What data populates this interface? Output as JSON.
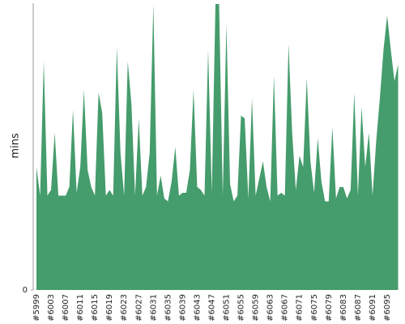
{
  "chart_data": {
    "type": "area",
    "y_label": "mins",
    "color": "#459c6c",
    "categories": [
      "#5999",
      null,
      null,
      null,
      "#6003",
      null,
      null,
      null,
      "#6007",
      null,
      null,
      null,
      "#6011",
      null,
      null,
      null,
      "#6015",
      null,
      null,
      null,
      "#6019",
      null,
      null,
      null,
      "#6023",
      null,
      null,
      null,
      "#6027",
      null,
      null,
      null,
      "#6031",
      null,
      null,
      null,
      "#6035",
      null,
      null,
      null,
      "#6039",
      null,
      null,
      null,
      "#6043",
      null,
      null,
      null,
      "#6047",
      null,
      null,
      null,
      "#6051",
      null,
      null,
      null,
      "#6055",
      null,
      null,
      null,
      "#6059",
      null,
      null,
      null,
      "#6063",
      null,
      null,
      null,
      "#6067",
      null,
      null,
      null,
      "#6071",
      null,
      null,
      null,
      "#6075",
      null,
      null,
      null,
      "#6079",
      null,
      null,
      null,
      "#6083",
      null,
      null,
      null,
      "#6087",
      null,
      null,
      null,
      "#6091",
      null,
      null,
      null,
      "#6095",
      null,
      null,
      null
    ],
    "values": [
      43,
      33,
      80,
      33,
      35,
      55,
      33,
      33,
      33,
      36,
      63,
      34,
      43,
      70,
      42,
      36,
      33,
      69,
      62,
      33,
      35,
      33,
      85,
      48,
      33,
      80,
      65,
      33,
      60,
      33,
      36,
      48,
      100,
      33,
      40,
      32,
      31,
      38,
      50,
      33,
      34,
      34,
      42,
      70,
      36,
      35,
      33,
      84,
      34,
      100,
      100,
      33,
      93,
      37,
      31,
      33,
      61,
      60,
      32,
      67,
      33,
      39,
      45,
      36,
      31,
      75,
      33,
      34,
      33,
      86,
      55,
      35,
      47,
      43,
      74,
      45,
      34,
      53,
      38,
      31,
      31,
      57,
      32,
      36,
      36,
      32,
      35,
      69,
      33,
      64,
      43,
      55,
      33,
      52,
      67,
      84,
      96,
      84,
      73,
      79
    ],
    "ylim": [
      0,
      100
    ],
    "yticks": [
      0
    ],
    "grid": false
  }
}
